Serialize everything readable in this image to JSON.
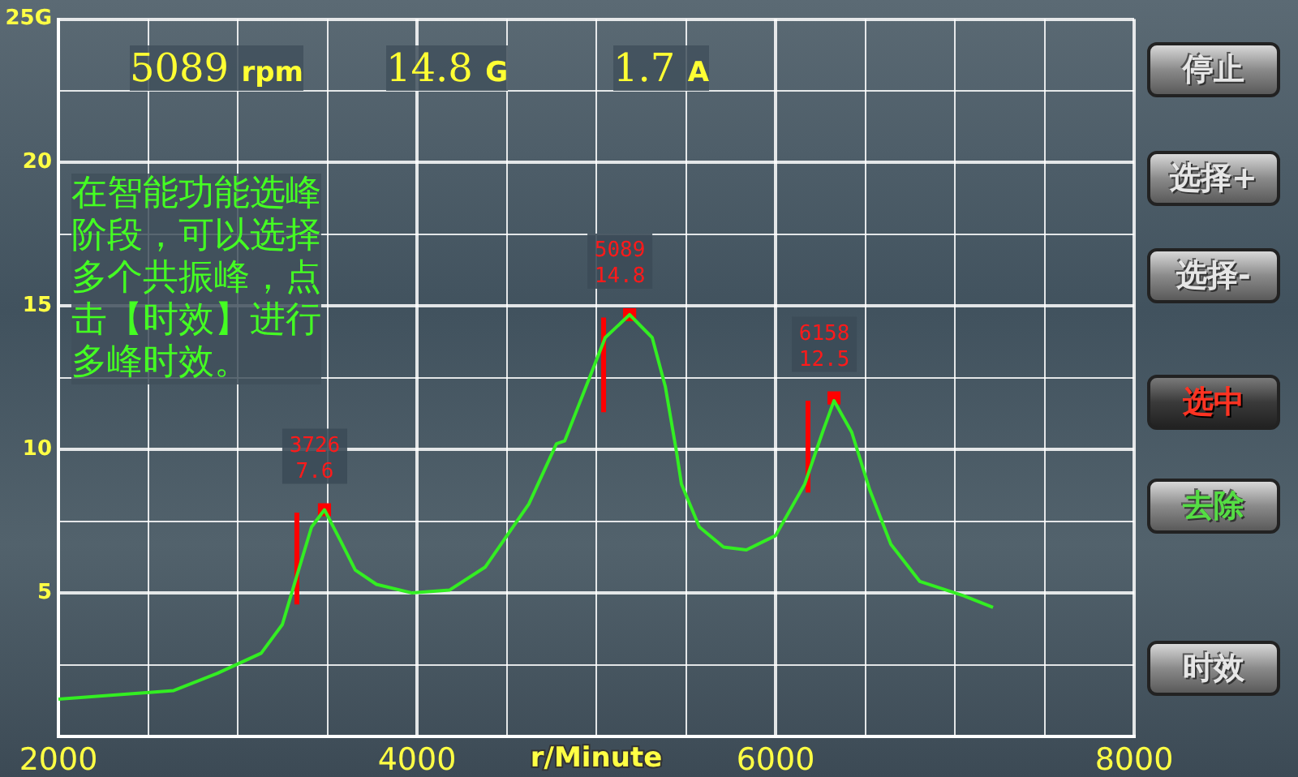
{
  "chart_data": {
    "type": "line",
    "xlabel": "r/Minute",
    "xlim": [
      2000,
      8000
    ],
    "xticks": [
      2000,
      {
        "value": 2500,
        "label": null
      },
      {
        "value": 3000,
        "label": null
      },
      {
        "value": 3500,
        "label": null
      },
      4000,
      {
        "value": 4500,
        "label": null
      },
      {
        "value": 5000,
        "label": null
      },
      {
        "value": 5500,
        "label": null
      },
      6000,
      {
        "value": 6500,
        "label": null
      },
      {
        "value": 7000,
        "label": null
      },
      {
        "value": 7500,
        "label": null
      },
      8000
    ],
    "ylim": [
      0,
      25
    ],
    "yticks": [
      {
        "value": 2.5,
        "label": null
      },
      5,
      {
        "value": 7.5,
        "label": null
      },
      10,
      {
        "value": 12.5,
        "label": null
      },
      15,
      {
        "value": 17.5,
        "label": null
      },
      20,
      {
        "value": 22.5,
        "label": null
      },
      {
        "value": 25,
        "label": "25G"
      }
    ],
    "grid": true,
    "legend": false,
    "marker": "none",
    "line_style": "solid",
    "series": [
      {
        "type": "line",
        "color": "#33ee22",
        "x": [
          2000,
          2643,
          2887,
          3131,
          3249,
          3330,
          3412,
          3484,
          3575,
          3656,
          3774,
          3973,
          4181,
          4380,
          4624,
          4778,
          4824,
          5050,
          5186,
          5312,
          5385,
          5448,
          5475,
          5575,
          5710,
          5837,
          6000,
          6163,
          6262,
          6326,
          6425,
          6525,
          6643,
          6805,
          7050,
          7213
        ],
        "values": [
          1.3,
          1.6,
          2.2,
          2.9,
          3.9,
          5.6,
          7.3,
          7.9,
          6.8,
          5.8,
          5.3,
          5.0,
          5.1,
          5.9,
          8.1,
          10.2,
          10.3,
          13.9,
          14.7,
          13.9,
          12.2,
          9.9,
          8.8,
          7.3,
          6.6,
          6.5,
          7.0,
          8.8,
          10.6,
          11.7,
          10.6,
          8.6,
          6.7,
          5.4,
          4.9,
          4.5
        ]
      },
      {
        "type": "scatter",
        "marker": "square",
        "color": "#ff0000",
        "x": [
          3484,
          5186,
          6326
        ],
        "values": [
          7.9,
          14.7,
          11.8
        ]
      },
      {
        "type": "line",
        "color": "#ff0000",
        "x": [
          3330,
          3330
        ],
        "values": [
          4.6,
          7.8
        ]
      },
      {
        "type": "line",
        "color": "#ff0000",
        "x": [
          5041,
          5041
        ],
        "values": [
          11.3,
          14.6
        ]
      },
      {
        "type": "line",
        "color": "#ff0000",
        "x": [
          6181,
          6181
        ],
        "values": [
          8.5,
          11.7
        ]
      }
    ],
    "annotations": [
      "5089 rpm",
      "14.8 G",
      "1.7 A",
      "在智能功能选峰阶段，可以选择多个共振峰，点击【时效】进行多峰时效。",
      {
        "text": "3726\n7.6",
        "x": 3484,
        "y": 7.9
      },
      {
        "text": "5089\n14.8",
        "x": 5186,
        "y": 14.7
      },
      {
        "text": "6158\n12.5",
        "x": 6326,
        "y": 11.8
      },
      "停止",
      "选择+",
      "选择-",
      "选中",
      "去除",
      "时效"
    ]
  }
}
